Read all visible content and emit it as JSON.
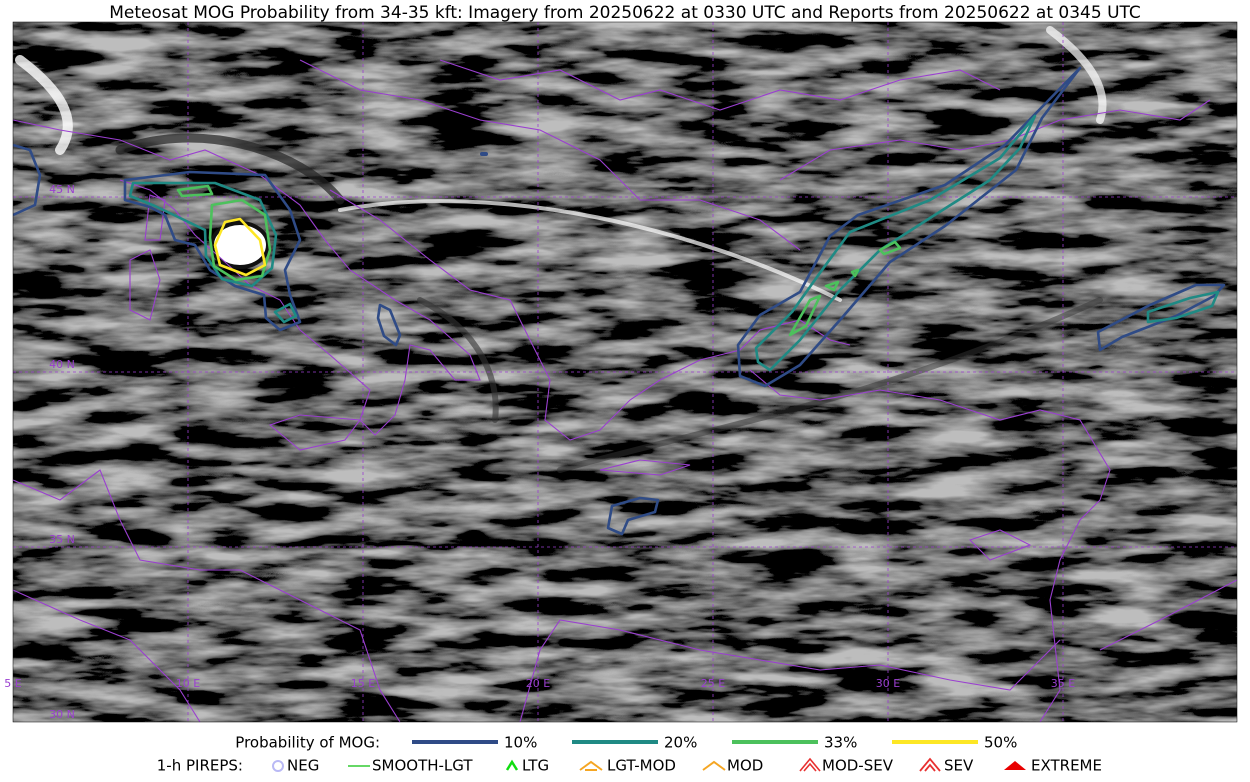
{
  "title": "Meteosat MOG Probability from 34-35 kft: Imagery from 20250622 at 0330 UTC and Reports from 20250622 at 0345 UTC",
  "grid": {
    "lat_labels": [
      "45 N",
      "40 N",
      "35 N",
      "30 N"
    ],
    "lon_labels": [
      "5 E",
      "10 E",
      "15 E",
      "20 E",
      "25 E",
      "30 E",
      "35 E"
    ]
  },
  "legend": {
    "probability": {
      "label": "Probability of MOG:",
      "items": [
        {
          "label": "10%",
          "color": "#2f4b86"
        },
        {
          "label": "20%",
          "color": "#1f8a84"
        },
        {
          "label": "33%",
          "color": "#4cc15c"
        },
        {
          "label": "50%",
          "color": "#fde725"
        }
      ]
    },
    "pireps": {
      "label": "1-h PIREPS:",
      "items": [
        {
          "label": "NEG",
          "color": "#b9b9f5"
        },
        {
          "label": "SMOOTH-LGT",
          "color": "#33cc33"
        },
        {
          "label": "LTG",
          "color": "#11dd11"
        },
        {
          "label": "LGT-MOD",
          "color": "#f5a623"
        },
        {
          "label": "MOD",
          "color": "#f5a623"
        },
        {
          "label": "MOD-SEV",
          "color": "#e83030"
        },
        {
          "label": "SEV",
          "color": "#e83030"
        },
        {
          "label": "EXTREME",
          "color": "#e80000"
        }
      ]
    }
  }
}
